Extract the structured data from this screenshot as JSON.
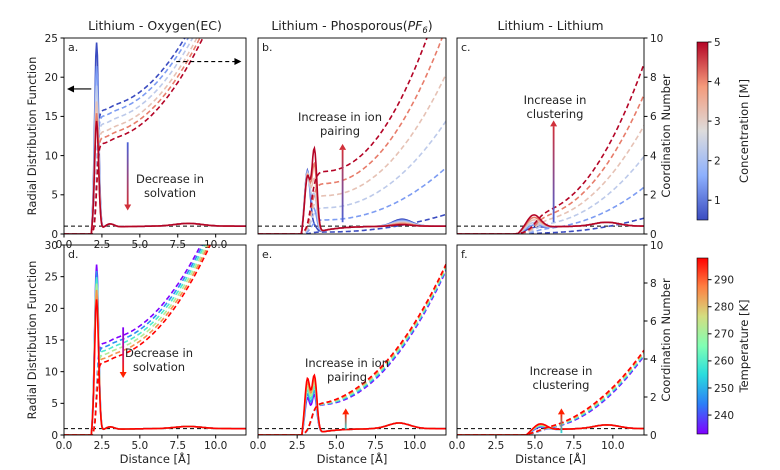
{
  "chart_data": [
    {
      "type": "line",
      "panel_label": "a.",
      "title": "Lithium - Oxygen(EC)",
      "xlabel": "",
      "ylabel": "Radial Distribution Function",
      "y2label": "",
      "xlim": [
        0,
        12
      ],
      "ylim": [
        0,
        25
      ],
      "y2lim": [
        0,
        10
      ],
      "xticks": [
        "0.0",
        "2.5",
        "5.0",
        "7.5",
        "10.0"
      ],
      "yticks": [
        "0",
        "5",
        "10",
        "15",
        "20",
        "25"
      ],
      "y2ticks": [],
      "colormap": "concentration",
      "kind": "oxygen",
      "rdf_peaks": [
        {
          "x": 2.15,
          "peak": 24.0
        },
        {
          "x": 2.15,
          "peak": 21.0
        },
        {
          "x": 2.15,
          "peak": 18.5
        },
        {
          "x": 2.15,
          "peak": 16.5
        },
        {
          "x": 2.15,
          "peak": 15.0
        },
        {
          "x": 2.15,
          "peak": 14.0
        }
      ],
      "cn_plateaus": [
        6.3,
        6.0,
        5.6,
        5.2,
        4.9,
        4.6
      ],
      "annotation": "Decrease in solvation",
      "annotation_lines": [
        "Decrease in",
        "solvation"
      ],
      "guide_arrow": {
        "x": 4.2,
        "y_from": 11.7,
        "y_to": 3.0,
        "units": "rdf",
        "gradient": "concentration"
      },
      "axis_arrows": [
        {
          "direction": "left",
          "style": "solid",
          "x_from": 1.8,
          "x_to": 0.2,
          "y": 18.5
        },
        {
          "direction": "right",
          "style": "dashed",
          "x_from": 7.4,
          "x_to": 11.7,
          "y": 22.0
        }
      ]
    },
    {
      "type": "line",
      "panel_label": "b.",
      "title": "Lithium - Phosporous(PF6)",
      "title_parts": {
        "main": "Lithium - Phosporous(",
        "italic": "PF",
        "sub": "6",
        "end": ")"
      },
      "xlabel": "",
      "ylabel": "",
      "y2label": "",
      "xlim": [
        0,
        12
      ],
      "ylim": [
        0,
        25
      ],
      "y2lim": [
        0,
        10
      ],
      "xticks": [],
      "yticks": [],
      "y2ticks": [],
      "colormap": "concentration",
      "kind": "phosphorus",
      "annotation": "Increase in ion pairing",
      "annotation_lines": [
        "Increase in ion",
        "pairing"
      ],
      "guide_arrow": {
        "x": 5.4,
        "y_from": 0.6,
        "y_to": 4.6,
        "units": "cn",
        "gradient": "concentration"
      }
    },
    {
      "type": "line",
      "panel_label": "c.",
      "title": "Lithium - Lithium",
      "xlabel": "",
      "ylabel": "",
      "y2label": "Coordination Number",
      "xlim": [
        0,
        12
      ],
      "ylim": [
        0,
        25
      ],
      "y2lim": [
        0,
        10
      ],
      "xticks": [],
      "yticks": [],
      "y2ticks": [
        "0",
        "2",
        "4",
        "6",
        "8",
        "10"
      ],
      "colormap": "concentration",
      "kind": "lithium",
      "annotation": "Increase in clustering",
      "annotation_lines": [
        "Increase in",
        "clustering"
      ],
      "guide_arrow": {
        "x": 6.2,
        "y_from": 0.6,
        "y_to": 5.8,
        "units": "cn",
        "gradient": "concentration"
      }
    },
    {
      "type": "line",
      "panel_label": "d.",
      "title": "",
      "xlabel": "Distance [Å]",
      "ylabel": "Radial Distribution Function",
      "y2label": "",
      "xlim": [
        0,
        12
      ],
      "ylim": [
        0,
        30
      ],
      "y2lim": [
        0,
        10
      ],
      "xticks": [
        "0.0",
        "2.5",
        "5.0",
        "7.5",
        "10.0"
      ],
      "yticks": [
        "0",
        "5",
        "10",
        "15",
        "20",
        "25",
        "30"
      ],
      "y2ticks": [],
      "colormap": "temperature",
      "kind": "oxygen",
      "rdf_peaks": [
        {
          "x": 2.15,
          "peak": 26.5
        },
        {
          "x": 2.15,
          "peak": 25.5
        },
        {
          "x": 2.15,
          "peak": 24.5
        },
        {
          "x": 2.15,
          "peak": 23.5
        },
        {
          "x": 2.15,
          "peak": 22.5
        },
        {
          "x": 2.15,
          "peak": 21.0
        }
      ],
      "cn_plateaus": [
        4.8,
        4.6,
        4.4,
        4.2,
        4.0,
        3.8
      ],
      "annotation": "Decrease in solvation",
      "annotation_lines": [
        "Decrease in",
        "solvation"
      ],
      "guide_arrow": {
        "x": 3.9,
        "y_from": 17.0,
        "y_to": 9.0,
        "units": "rdf",
        "gradient": "temperature"
      }
    },
    {
      "type": "line",
      "panel_label": "e.",
      "title": "",
      "xlabel": "Distance [Å]",
      "ylabel": "",
      "y2label": "",
      "xlim": [
        0,
        12
      ],
      "ylim": [
        0,
        30
      ],
      "y2lim": [
        0,
        10
      ],
      "xticks": [
        "0.0",
        "2.5",
        "5.0",
        "7.5",
        "10.0"
      ],
      "yticks": [],
      "y2ticks": [],
      "colormap": "temperature",
      "kind": "phosphorus_t",
      "annotation": "Increase in ion pairing",
      "annotation_lines": [
        "Increase in ion",
        "pairing"
      ],
      "guide_arrow": {
        "x": 5.6,
        "y_from": 0.3,
        "y_to": 1.4,
        "units": "cn",
        "gradient": "temperature"
      }
    },
    {
      "type": "line",
      "panel_label": "f.",
      "title": "",
      "xlabel": "Distance [Å]",
      "ylabel": "",
      "y2label": "Coordination Number",
      "xlim": [
        0,
        12
      ],
      "ylim": [
        0,
        30
      ],
      "y2lim": [
        0,
        10
      ],
      "xticks": [
        "0.0",
        "2.5",
        "5.0",
        "7.5",
        "10.0"
      ],
      "yticks": [],
      "y2ticks": [
        "0",
        "2",
        "4",
        "6",
        "8",
        "10"
      ],
      "colormap": "temperature",
      "kind": "lithium_t",
      "annotation": "Increase in clustering",
      "annotation_lines": [
        "Increase in",
        "clustering"
      ],
      "guide_arrow": {
        "x": 6.7,
        "y_from": 0.1,
        "y_to": 1.4,
        "units": "cn",
        "gradient": "temperature"
      }
    }
  ],
  "colorbars": [
    {
      "label": "Concentration [M]",
      "min": 0.5,
      "max": 5,
      "ticks": [
        "1",
        "2",
        "3",
        "4",
        "5"
      ],
      "tick_values": [
        1,
        2,
        3,
        4,
        5
      ],
      "colormap": "coolwarm",
      "colors": [
        "#3b4cc0",
        "#8db0fe",
        "#dddcdc",
        "#f49a7b",
        "#b40426"
      ]
    },
    {
      "label": "Temperature [K]",
      "min": 233,
      "max": 298,
      "ticks": [
        "240",
        "250",
        "260",
        "270",
        "280",
        "290"
      ],
      "tick_values": [
        240,
        250,
        260,
        270,
        280,
        290
      ],
      "colormap": "rainbow",
      "colors": [
        "#8000ff",
        "#2c7ef7",
        "#2adddd",
        "#80ffb4",
        "#d4dd80",
        "#ff7e41",
        "#ff0000"
      ]
    }
  ],
  "reference_line": {
    "y": 1.0,
    "style": "dashed",
    "color": "#000000"
  }
}
